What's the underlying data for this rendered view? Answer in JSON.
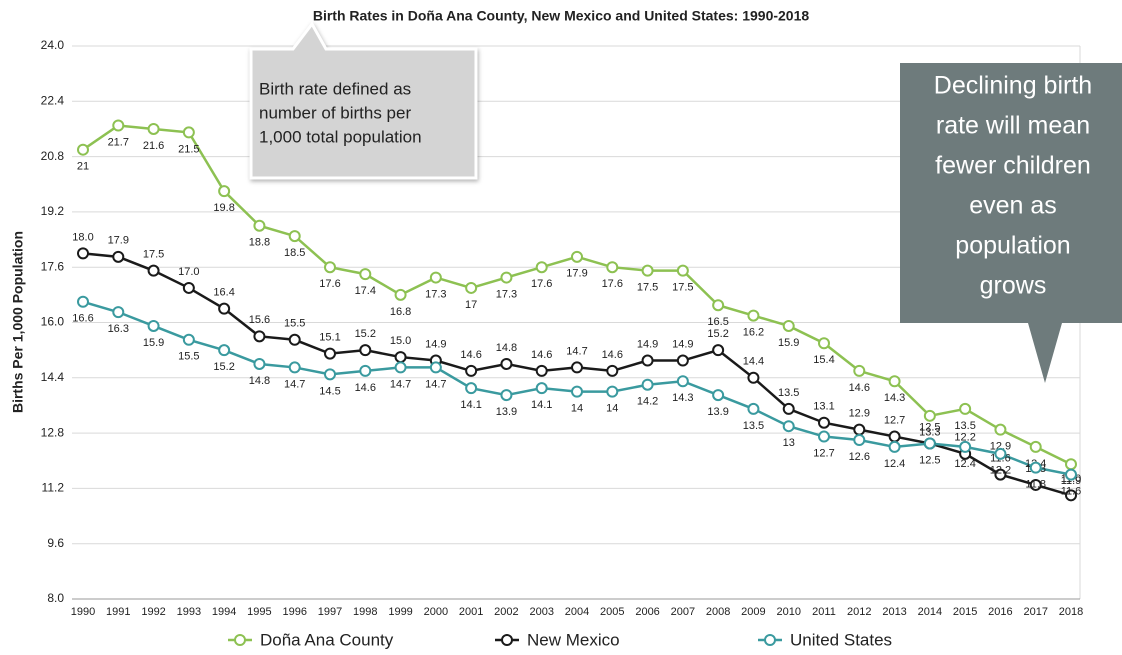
{
  "chart_data": {
    "type": "line",
    "title": "Birth Rates in Doña Ana County, New Mexico and United States: 1990-2018",
    "y_label": "Births Per 1,000 Population",
    "categories": [
      "1990",
      "1991",
      "1992",
      "1993",
      "1994",
      "1995",
      "1996",
      "1997",
      "1998",
      "1999",
      "2000",
      "2001",
      "2002",
      "2003",
      "2004",
      "2005",
      "2006",
      "2007",
      "2008",
      "2009",
      "2010",
      "2011",
      "2012",
      "2013",
      "2014",
      "2015",
      "2016",
      "2017",
      "2018"
    ],
    "series": [
      {
        "name": "Doña Ana County",
        "color": "#8dc152",
        "values": [
          21,
          21.7,
          21.6,
          21.5,
          19.8,
          18.8,
          18.5,
          17.6,
          17.4,
          16.8,
          17.3,
          17,
          17.3,
          17.6,
          17.9,
          17.6,
          17.5,
          17.5,
          16.5,
          16.2,
          15.9,
          15.4,
          14.6,
          14.3,
          13.3,
          13.5,
          12.9,
          12.4,
          11.9
        ],
        "value_labels": [
          "21",
          "21.7",
          "21.6",
          "21.5",
          "19.8",
          "18.8",
          "18.5",
          "17.6",
          "17.4",
          "16.8",
          "17.3",
          "17",
          "17.3",
          "17.6",
          "17.9",
          "17.6",
          "17.5",
          "17.5",
          "16.5",
          "16.2",
          "15.9",
          "15.4",
          "14.6",
          "14.3",
          "13.3",
          "13.5",
          "12.9",
          "12.4",
          "11.9"
        ]
      },
      {
        "name": "New Mexico",
        "color": "#1a1a1a",
        "values": [
          18,
          17.9,
          17.5,
          17,
          16.4,
          15.6,
          15.5,
          15.1,
          15.2,
          15,
          14.9,
          14.6,
          14.8,
          14.6,
          14.7,
          14.6,
          14.9,
          14.9,
          15.2,
          14.4,
          13.5,
          13.1,
          12.9,
          12.7,
          12.5,
          12.2,
          11.6,
          11.3,
          11
        ],
        "value_labels": [
          "18.0",
          "17.9",
          "17.5",
          "17.0",
          "16.4",
          "15.6",
          "15.5",
          "15.1",
          "15.2",
          "15.0",
          "14.9",
          "14.6",
          "14.8",
          "14.6",
          "14.7",
          "14.6",
          "14.9",
          "14.9",
          "15.2",
          "14.4",
          "13.5",
          "13.1",
          "12.9",
          "12.7",
          "12.5",
          "12.2",
          "11.6",
          "11.3",
          "11.0"
        ]
      },
      {
        "name": "United States",
        "color": "#3a9a9f",
        "values": [
          16.6,
          16.3,
          15.9,
          15.5,
          15.2,
          14.8,
          14.7,
          14.5,
          14.6,
          14.7,
          14.7,
          14.1,
          13.9,
          14.1,
          14,
          14,
          14.2,
          14.3,
          13.9,
          13.5,
          13,
          12.7,
          12.6,
          12.4,
          12.5,
          12.4,
          12.2,
          11.8,
          11.6
        ],
        "value_labels": [
          "16.6",
          "16.3",
          "15.9",
          "15.5",
          "15.2",
          "14.8",
          "14.7",
          "14.5",
          "14.6",
          "14.7",
          "14.7",
          "14.1",
          "13.9",
          "14.1",
          "14",
          "14",
          "14.2",
          "14.3",
          "13.9",
          "13.5",
          "13",
          "12.7",
          "12.6",
          "12.4",
          "12.5",
          "12.4",
          "12.2",
          "11.8",
          "11.6"
        ]
      }
    ],
    "ylim": [
      8,
      24
    ],
    "yticks": [
      {
        "value": 8,
        "label": "8.0"
      },
      9.6,
      11.2,
      12.8,
      14.4,
      {
        "value": 16,
        "label": "16.0"
      },
      17.6,
      19.2,
      20.8,
      22.4,
      {
        "value": 24,
        "label": "24.0"
      }
    ],
    "grid": true,
    "legend": "bottom",
    "annotations": [
      {
        "lines": [
          "Birth rate defined as",
          "number of births per",
          "1,000 total population"
        ]
      },
      {
        "lines": [
          "Declining birth",
          "rate will mean",
          "fewer children",
          "even as",
          "population",
          "grows"
        ]
      }
    ]
  }
}
